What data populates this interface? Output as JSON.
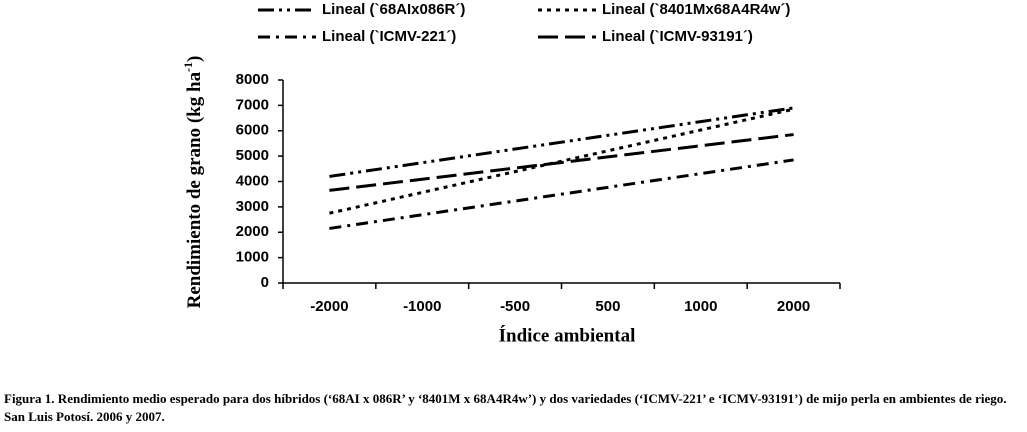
{
  "chart_data": {
    "type": "line",
    "categories": [
      "-2000",
      "-1000",
      "-500",
      "500",
      "1000",
      "2000"
    ],
    "series": [
      {
        "name": "Lineal (`68AIx086R´)",
        "color": "#000000",
        "dash": "16 5 3 5 3 5",
        "values": [
          4200,
          4740,
          5280,
          5820,
          6360,
          6900
        ]
      },
      {
        "name": "Lineal (`8401Mx68A4R4w´)",
        "color": "#000000",
        "dash": "4 5",
        "values": [
          2750,
          3570,
          4390,
          5210,
          6030,
          6850
        ]
      },
      {
        "name": "Lineal (`ICMV-221´)",
        "color": "#000000",
        "dash": "12 6 3 6",
        "values": [
          2150,
          2690,
          3230,
          3770,
          4310,
          4850
        ]
      },
      {
        "name": "Lineal (`ICMV-93191´)",
        "color": "#000000",
        "dash": "20 7",
        "values": [
          3650,
          4090,
          4530,
          4970,
          5410,
          5850
        ]
      }
    ],
    "ylim": [
      0,
      8000
    ],
    "yticks": [
      0,
      1000,
      2000,
      3000,
      4000,
      5000,
      6000,
      7000,
      8000
    ],
    "ylabel": "Rendimiento de grano (kg ha",
    "ylabel_sup": "-1",
    "ylabel_end": ")",
    "xlabel": "Índice ambiental",
    "caption": "Figura 1. Rendimiento medio esperado para dos híbridos (‘68AI x 086R’ y ‘8401M x 68A4R4w’) y dos variedades (‘ICMV-221’ e ‘ICMV-93191’) de mijo perla en ambientes de riego. San Luis Potosí. 2006 y 2007."
  }
}
